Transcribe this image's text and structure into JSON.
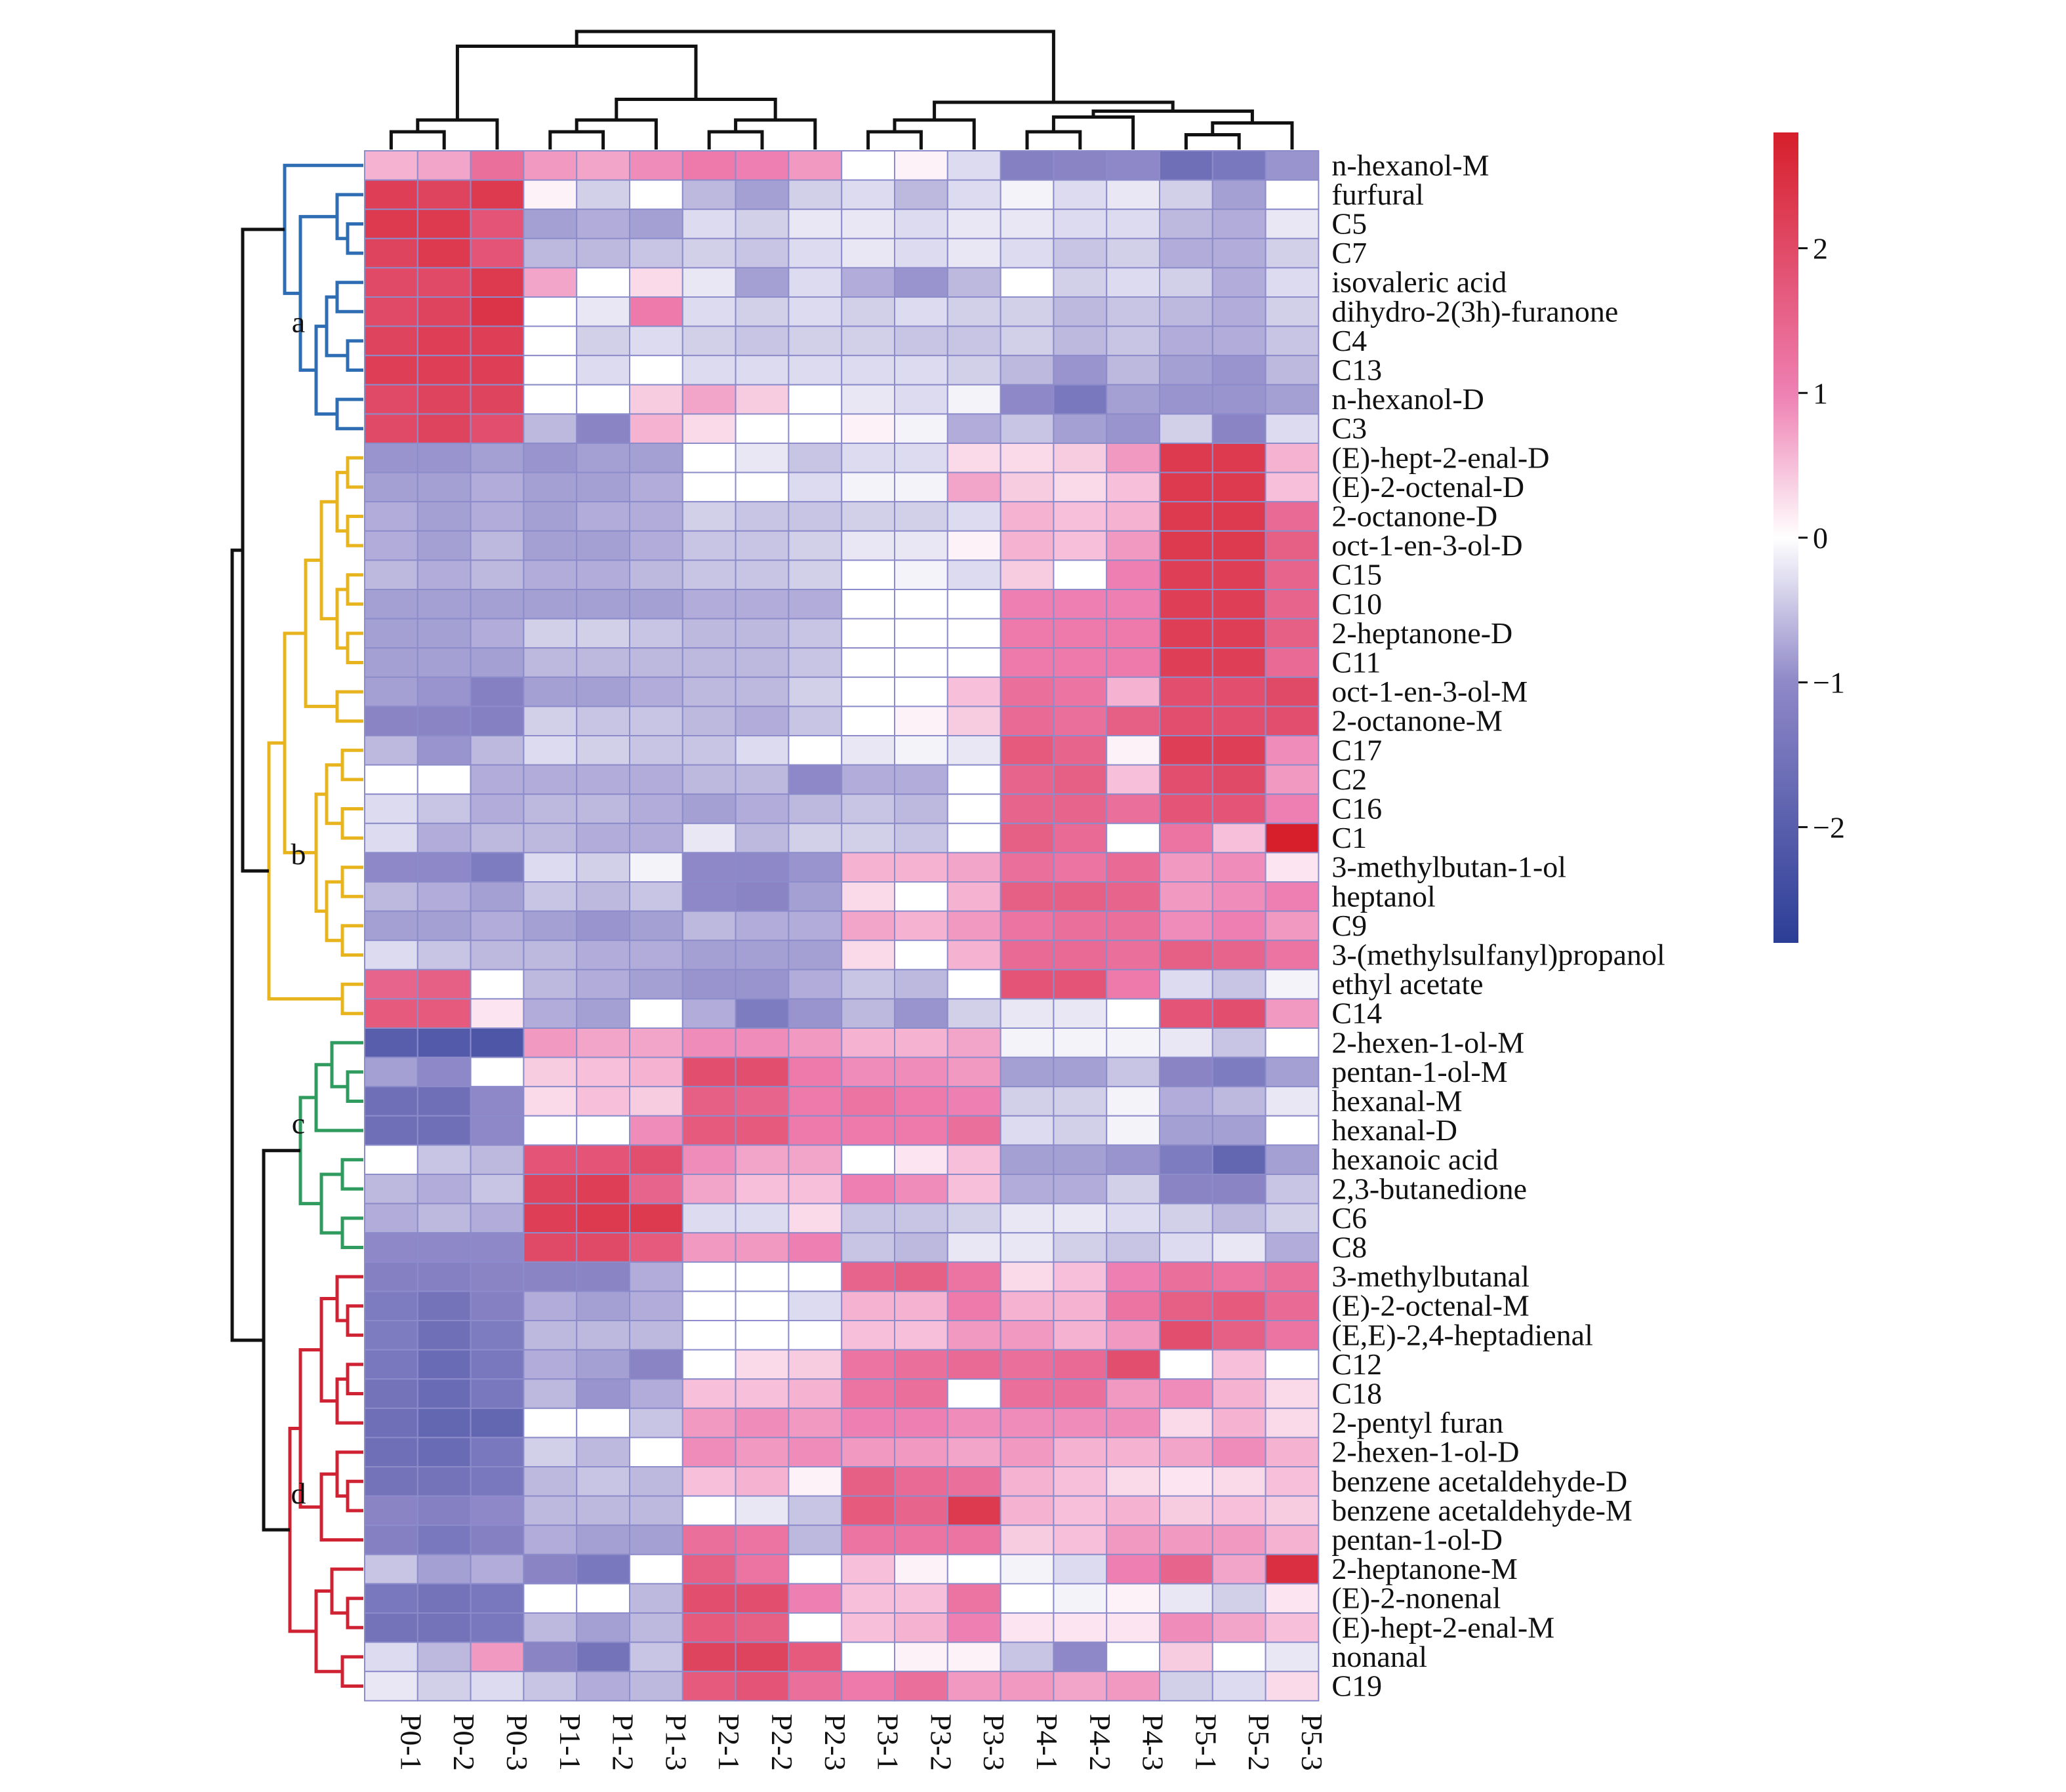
{
  "chart_data": {
    "type": "heatmap",
    "columns": [
      "P0-1",
      "P0-2",
      "P0-3",
      "P1-1",
      "P1-2",
      "P1-3",
      "P2-1",
      "P2-2",
      "P2-3",
      "P3-1",
      "P3-2",
      "P3-3",
      "P4-1",
      "P4-2",
      "P4-3",
      "P5-1",
      "P5-2",
      "P5-3"
    ],
    "rows": [
      "n-hexanol-M",
      "furfural",
      "C5",
      "C7",
      "isovaleric acid",
      "dihydro-2(3h)-furanone",
      "C4",
      "C13",
      "n-hexanol-D",
      "C3",
      "(E)-hept-2-enal-D",
      "(E)-2-octenal-D",
      "2-octanone-D",
      "oct-1-en-3-ol-D",
      "C15",
      "C10",
      "2-heptanone-D",
      "C11",
      "oct-1-en-3-ol-M",
      "2-octanone-M",
      "C17",
      "C2",
      "C16",
      "C1",
      "3-methylbutan-1-ol",
      "heptanol",
      "C9",
      "3-(methylsulfanyl)propanol",
      "ethyl acetate",
      "C14",
      "2-hexen-1-ol-M",
      "pentan-1-ol-M",
      "hexanal-M",
      "hexanal-D",
      "hexanoic acid",
      "2,3-butanedione",
      "C6",
      "C8",
      "3-methylbutanal",
      "(E)-2-octenal-M",
      "(E,E)-2,4-heptadienal",
      "C12",
      "C18",
      "2-pentyl furan",
      "2-hexen-1-ol-D",
      "benzene acetaldehyde-D",
      "benzene acetaldehyde-M",
      "pentan-1-ol-D",
      "2-heptanone-M",
      "(E)-2-nonenal",
      "(E)-hept-2-enal-M",
      "nonanal",
      "C19"
    ],
    "values": [
      [
        0.6,
        0.7,
        1.3,
        0.8,
        0.7,
        0.9,
        1.1,
        1.0,
        0.8,
        0.0,
        0.1,
        -0.3,
        -1.2,
        -1.1,
        -1.0,
        -1.6,
        -1.4,
        -0.9
      ],
      [
        2.2,
        2.1,
        2.3,
        0.1,
        -0.4,
        0.0,
        -0.6,
        -0.8,
        -0.4,
        -0.3,
        -0.6,
        -0.3,
        -0.1,
        -0.3,
        -0.2,
        -0.4,
        -0.8,
        0.0
      ],
      [
        2.3,
        2.3,
        1.8,
        -0.8,
        -0.7,
        -0.8,
        -0.3,
        -0.4,
        -0.2,
        -0.2,
        -0.3,
        -0.2,
        -0.2,
        -0.3,
        -0.3,
        -0.6,
        -0.7,
        -0.2
      ],
      [
        2.1,
        2.3,
        1.8,
        -0.6,
        -0.6,
        -0.5,
        -0.4,
        -0.5,
        -0.3,
        -0.2,
        -0.3,
        -0.2,
        -0.3,
        -0.5,
        -0.4,
        -0.7,
        -0.7,
        -0.4
      ],
      [
        2.0,
        2.0,
        2.3,
        0.7,
        0.0,
        0.3,
        -0.2,
        -0.8,
        -0.3,
        -0.7,
        -0.9,
        -0.6,
        0.0,
        -0.4,
        -0.3,
        -0.4,
        -0.7,
        -0.3
      ],
      [
        2.0,
        2.1,
        2.4,
        0.0,
        -0.2,
        1.1,
        -0.3,
        -0.4,
        -0.3,
        -0.4,
        -0.3,
        -0.4,
        -0.4,
        -0.6,
        -0.5,
        -0.6,
        -0.7,
        -0.4
      ],
      [
        2.1,
        2.2,
        2.2,
        0.0,
        -0.4,
        -0.3,
        -0.4,
        -0.5,
        -0.4,
        -0.4,
        -0.5,
        -0.5,
        -0.4,
        -0.6,
        -0.5,
        -0.7,
        -0.7,
        -0.5
      ],
      [
        2.2,
        2.2,
        2.2,
        0.0,
        -0.3,
        0.0,
        -0.3,
        -0.3,
        -0.3,
        -0.3,
        -0.3,
        -0.4,
        -0.6,
        -0.9,
        -0.6,
        -0.8,
        -0.9,
        -0.6
      ],
      [
        2.0,
        2.1,
        2.1,
        0.0,
        0.0,
        0.4,
        0.7,
        0.4,
        0.0,
        -0.2,
        -0.3,
        -0.1,
        -1.0,
        -1.4,
        -0.8,
        -0.9,
        -0.9,
        -0.8
      ],
      [
        2.0,
        2.1,
        1.9,
        -0.6,
        -1.1,
        0.6,
        0.3,
        0.0,
        0.0,
        0.1,
        -0.1,
        -0.7,
        -0.5,
        -0.8,
        -0.9,
        -0.4,
        -1.1,
        -0.3
      ],
      [
        -0.9,
        -0.9,
        -0.8,
        -0.9,
        -0.8,
        -0.8,
        0.0,
        -0.2,
        -0.5,
        -0.3,
        -0.3,
        0.3,
        0.3,
        0.4,
        0.8,
        2.3,
        2.3,
        0.6
      ],
      [
        -0.8,
        -0.8,
        -0.7,
        -0.8,
        -0.8,
        -0.7,
        0.0,
        0.0,
        -0.3,
        -0.1,
        -0.1,
        0.7,
        0.4,
        0.3,
        0.5,
        2.3,
        2.3,
        0.5
      ],
      [
        -0.7,
        -0.8,
        -0.7,
        -0.8,
        -0.7,
        -0.7,
        -0.4,
        -0.5,
        -0.5,
        -0.4,
        -0.4,
        -0.3,
        0.6,
        0.5,
        0.6,
        2.3,
        2.3,
        1.4
      ],
      [
        -0.7,
        -0.8,
        -0.6,
        -0.8,
        -0.8,
        -0.7,
        -0.5,
        -0.5,
        -0.4,
        -0.2,
        -0.2,
        0.1,
        0.6,
        0.5,
        0.8,
        2.3,
        2.3,
        1.6
      ],
      [
        -0.6,
        -0.7,
        -0.6,
        -0.7,
        -0.7,
        -0.6,
        -0.5,
        -0.5,
        -0.4,
        0.0,
        -0.1,
        -0.3,
        0.4,
        0.0,
        1.0,
        2.2,
        2.2,
        1.5
      ],
      [
        -0.8,
        -0.8,
        -0.8,
        -0.8,
        -0.8,
        -0.8,
        -0.7,
        -0.7,
        -0.7,
        0.0,
        0.0,
        0.0,
        1.0,
        1.0,
        1.0,
        2.2,
        2.2,
        1.5
      ],
      [
        -0.8,
        -0.8,
        -0.7,
        -0.4,
        -0.4,
        -0.5,
        -0.6,
        -0.6,
        -0.5,
        0.0,
        0.0,
        0.0,
        1.1,
        1.1,
        1.1,
        2.2,
        2.2,
        1.6
      ],
      [
        -0.8,
        -0.8,
        -0.8,
        -0.6,
        -0.6,
        -0.6,
        -0.6,
        -0.6,
        -0.5,
        0.0,
        0.0,
        0.0,
        1.1,
        1.1,
        1.1,
        2.2,
        2.2,
        1.4
      ],
      [
        -0.8,
        -0.9,
        -1.2,
        -0.8,
        -0.8,
        -0.7,
        -0.6,
        -0.6,
        -0.4,
        0.0,
        0.0,
        0.5,
        1.3,
        1.2,
        0.6,
        1.9,
        1.9,
        2.0
      ],
      [
        -1.1,
        -1.1,
        -1.2,
        -0.4,
        -0.5,
        -0.5,
        -0.6,
        -0.7,
        -0.5,
        0.0,
        0.1,
        0.4,
        1.4,
        1.3,
        1.6,
        1.9,
        1.9,
        1.9
      ],
      [
        -0.6,
        -0.9,
        -0.6,
        -0.3,
        -0.4,
        -0.5,
        -0.5,
        -0.3,
        0.0,
        -0.2,
        -0.1,
        -0.2,
        1.7,
        1.5,
        0.1,
        2.2,
        2.2,
        0.9
      ],
      [
        0.0,
        0.0,
        -0.7,
        -0.7,
        -0.7,
        -0.7,
        -0.6,
        -0.6,
        -1.0,
        -0.7,
        -0.7,
        0.0,
        1.5,
        1.6,
        0.5,
        1.9,
        2.0,
        0.8
      ],
      [
        -0.3,
        -0.5,
        -0.7,
        -0.6,
        -0.6,
        -0.7,
        -0.8,
        -0.7,
        -0.6,
        -0.5,
        -0.6,
        0.0,
        1.5,
        1.5,
        1.3,
        1.8,
        1.8,
        1.0
      ],
      [
        -0.3,
        -0.7,
        -0.6,
        -0.6,
        -0.7,
        -0.7,
        -0.2,
        -0.6,
        -0.4,
        -0.4,
        -0.5,
        0.0,
        1.6,
        1.4,
        0.0,
        1.2,
        0.5,
        2.8
      ],
      [
        -1.0,
        -1.0,
        -1.3,
        -0.3,
        -0.4,
        -0.1,
        -1.0,
        -1.0,
        -0.9,
        0.6,
        0.6,
        0.7,
        1.3,
        1.2,
        1.4,
        0.8,
        0.9,
        0.2
      ],
      [
        -0.6,
        -0.7,
        -0.8,
        -0.5,
        -0.6,
        -0.5,
        -1.0,
        -1.1,
        -0.8,
        0.3,
        0.0,
        0.6,
        1.6,
        1.6,
        1.5,
        0.8,
        0.9,
        1.0
      ],
      [
        -0.8,
        -0.8,
        -0.7,
        -0.8,
        -0.9,
        -0.8,
        -0.6,
        -0.7,
        -0.7,
        0.7,
        0.6,
        0.8,
        1.2,
        1.3,
        1.3,
        0.9,
        1.0,
        0.8
      ],
      [
        -0.3,
        -0.5,
        -0.6,
        -0.6,
        -0.7,
        -0.7,
        -0.8,
        -0.8,
        -0.8,
        0.3,
        0.0,
        0.6,
        1.4,
        1.4,
        1.3,
        1.6,
        1.5,
        1.2
      ],
      [
        1.5,
        1.6,
        0.0,
        -0.6,
        -0.7,
        -0.8,
        -0.9,
        -0.9,
        -0.7,
        -0.5,
        -0.6,
        0.0,
        1.8,
        1.8,
        1.1,
        -0.3,
        -0.5,
        -0.1
      ],
      [
        1.7,
        1.7,
        0.2,
        -0.7,
        -0.8,
        0.0,
        -0.7,
        -1.3,
        -0.9,
        -0.6,
        -0.9,
        -0.4,
        -0.2,
        -0.2,
        0.0,
        1.8,
        1.9,
        0.8
      ],
      [
        -2.0,
        -2.1,
        -2.2,
        0.8,
        0.7,
        0.7,
        0.9,
        0.9,
        0.8,
        0.6,
        0.6,
        0.7,
        -0.1,
        -0.1,
        -0.1,
        -0.2,
        -0.5,
        0.0
      ],
      [
        -0.8,
        -1.0,
        0.0,
        0.4,
        0.5,
        0.6,
        1.9,
        1.9,
        1.1,
        0.9,
        0.9,
        0.8,
        -0.8,
        -0.8,
        -0.5,
        -1.1,
        -1.3,
        -0.8
      ],
      [
        -1.6,
        -1.6,
        -1.0,
        0.3,
        0.5,
        0.4,
        1.6,
        1.5,
        1.1,
        1.2,
        1.1,
        1.0,
        -0.4,
        -0.4,
        -0.1,
        -0.7,
        -0.6,
        -0.2
      ],
      [
        -1.6,
        -1.6,
        -1.0,
        0.0,
        0.0,
        0.9,
        1.7,
        1.7,
        1.1,
        1.1,
        1.1,
        1.3,
        -0.3,
        -0.4,
        -0.1,
        -0.8,
        -0.8,
        0.0
      ],
      [
        0.0,
        -0.5,
        -0.6,
        1.8,
        1.8,
        1.9,
        0.9,
        0.7,
        0.7,
        0.0,
        0.2,
        0.5,
        -0.8,
        -0.8,
        -0.9,
        -1.3,
        -1.8,
        -0.8
      ],
      [
        -0.6,
        -0.7,
        -0.5,
        2.1,
        2.2,
        1.5,
        0.7,
        0.5,
        0.5,
        1.0,
        0.9,
        0.5,
        -0.7,
        -0.7,
        -0.4,
        -1.1,
        -1.1,
        -0.5
      ],
      [
        -0.7,
        -0.6,
        -0.7,
        2.2,
        2.3,
        2.3,
        -0.3,
        -0.3,
        0.3,
        -0.5,
        -0.5,
        -0.4,
        -0.2,
        -0.2,
        -0.3,
        -0.4,
        -0.6,
        -0.4
      ],
      [
        -1.0,
        -1.0,
        -1.0,
        2.0,
        2.0,
        1.7,
        0.8,
        0.8,
        1.0,
        -0.5,
        -0.6,
        -0.2,
        -0.2,
        -0.4,
        -0.5,
        -0.3,
        -0.2,
        -0.7
      ],
      [
        -1.2,
        -1.2,
        -1.1,
        -1.1,
        -1.1,
        -0.7,
        0.0,
        0.0,
        0.0,
        1.5,
        1.6,
        1.2,
        0.3,
        0.5,
        1.0,
        1.3,
        1.2,
        1.3
      ],
      [
        -1.3,
        -1.5,
        -1.2,
        -0.7,
        -0.8,
        -0.7,
        0.0,
        0.0,
        -0.3,
        0.6,
        0.6,
        1.1,
        0.6,
        0.6,
        1.2,
        1.6,
        1.7,
        1.4
      ],
      [
        -1.3,
        -1.6,
        -1.3,
        -0.6,
        -0.6,
        -0.6,
        0.0,
        0.0,
        0.0,
        0.5,
        0.5,
        0.8,
        0.8,
        0.6,
        0.8,
        1.9,
        1.6,
        1.2
      ],
      [
        -1.4,
        -1.7,
        -1.4,
        -0.7,
        -0.8,
        -1.1,
        0.0,
        0.3,
        0.4,
        1.2,
        1.3,
        1.4,
        1.3,
        1.4,
        1.9,
        0.0,
        0.5,
        0.0
      ],
      [
        -1.5,
        -1.7,
        -1.4,
        -0.6,
        -0.9,
        -0.7,
        0.5,
        0.5,
        0.6,
        1.2,
        1.3,
        0.0,
        1.3,
        1.3,
        0.8,
        0.9,
        0.6,
        0.3
      ],
      [
        -1.6,
        -1.8,
        -1.8,
        0.0,
        0.0,
        -0.5,
        0.8,
        0.9,
        0.8,
        1.0,
        1.0,
        0.9,
        0.9,
        0.9,
        0.9,
        0.3,
        0.6,
        0.3
      ],
      [
        -1.6,
        -1.7,
        -1.4,
        -0.4,
        -0.6,
        0.0,
        0.9,
        0.8,
        0.9,
        0.8,
        0.8,
        0.7,
        0.8,
        0.6,
        0.6,
        0.7,
        0.9,
        0.6
      ],
      [
        -1.5,
        -1.5,
        -1.4,
        -0.6,
        -0.5,
        -0.6,
        0.5,
        0.6,
        0.1,
        1.6,
        1.4,
        1.3,
        0.6,
        0.5,
        0.3,
        0.2,
        0.3,
        0.5
      ],
      [
        -1.1,
        -1.2,
        -1.0,
        -0.6,
        -0.6,
        -0.6,
        0.0,
        -0.2,
        -0.5,
        1.7,
        1.5,
        2.3,
        0.6,
        0.5,
        0.6,
        0.4,
        0.5,
        0.4
      ],
      [
        -1.2,
        -1.4,
        -1.2,
        -0.7,
        -0.8,
        -0.8,
        1.3,
        1.2,
        -0.6,
        1.2,
        1.2,
        1.2,
        0.4,
        0.5,
        0.8,
        0.8,
        0.8,
        0.6
      ],
      [
        -0.5,
        -0.8,
        -0.7,
        -1.1,
        -1.4,
        0.0,
        1.6,
        1.2,
        0.0,
        0.5,
        0.1,
        0.0,
        -0.1,
        -0.3,
        1.0,
        1.5,
        0.7,
        2.5
      ],
      [
        -1.4,
        -1.5,
        -1.4,
        0.0,
        0.0,
        -0.6,
        1.9,
        1.9,
        1.0,
        0.5,
        0.5,
        1.2,
        0.0,
        -0.1,
        0.1,
        -0.2,
        -0.4,
        0.2
      ],
      [
        -1.5,
        -1.5,
        -1.4,
        -0.6,
        -0.8,
        -0.6,
        1.7,
        1.6,
        0.0,
        0.5,
        0.6,
        1.0,
        0.2,
        0.2,
        0.2,
        0.9,
        0.7,
        0.5
      ],
      [
        -0.3,
        -0.6,
        0.8,
        -1.1,
        -1.5,
        -0.5,
        2.1,
        2.1,
        1.7,
        0.0,
        0.1,
        0.1,
        -0.5,
        -1.0,
        0.0,
        0.4,
        0.0,
        -0.2
      ],
      [
        -0.2,
        -0.4,
        -0.3,
        -0.5,
        -0.7,
        -0.6,
        1.7,
        1.8,
        1.3,
        1.1,
        1.3,
        0.8,
        0.8,
        0.7,
        0.8,
        -0.4,
        -0.3,
        0.3
      ]
    ],
    "zlim": [
      -2.8,
      2.8
    ],
    "colorbar_ticks": [
      2,
      1,
      0,
      -1,
      -2
    ],
    "colorbar_tick_labels": [
      "2",
      "1",
      "0",
      "−1",
      "−2"
    ],
    "colorscale": {
      "low": "#2c3d96",
      "mid_low": "#8f88c8",
      "mid": "#ffffff",
      "mid_high": "#ee7fb2",
      "high": "#d61f2a"
    },
    "row_clusters": [
      {
        "label": "a",
        "start": 0,
        "end": 9,
        "color": "#2e6db4"
      },
      {
        "label": "b",
        "start": 10,
        "end": 29,
        "color": "#e8b41e"
      },
      {
        "label": "c",
        "start": 30,
        "end": 37,
        "color": "#2f9b5e"
      },
      {
        "label": "d",
        "start": 38,
        "end": 52,
        "color": "#cf2233"
      }
    ],
    "legend_placement": "right"
  }
}
